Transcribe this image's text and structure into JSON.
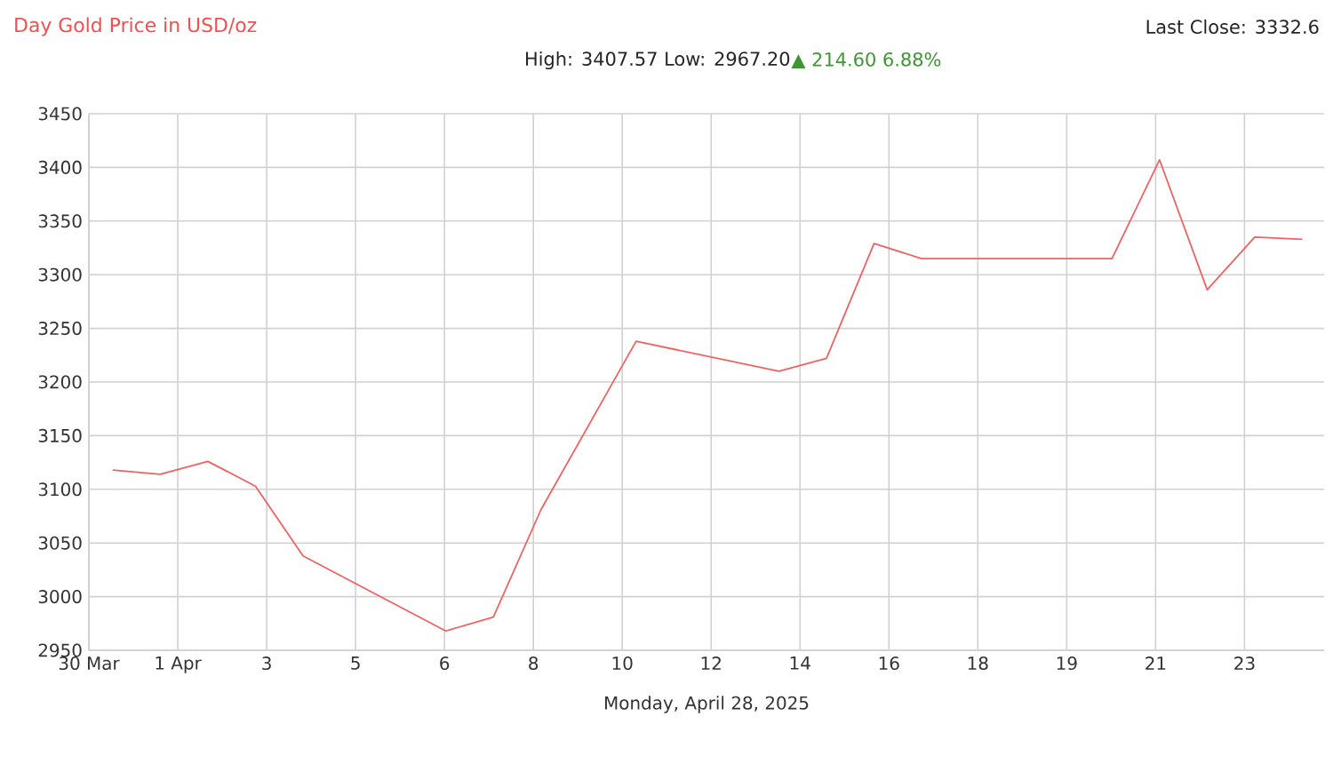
{
  "chart_data": {
    "type": "line",
    "title": "Day Gold Price in USD/oz",
    "subtitle": "High: 3407.57 Low: 2967.20",
    "xlabel": "Monday, April 28, 2025",
    "annotations": [
      "Last Close: 3332.6",
      "▲ 214.60 6.88%"
    ],
    "x": [
      "2025-03-30T22:00",
      "2025-03-31T22:00",
      "2025-04-01T22:00",
      "2025-04-02T22:00",
      "2025-04-03T22:00",
      "2025-04-06T22:00",
      "2025-04-07T22:00",
      "2025-04-08T22:00",
      "2025-04-10T22:00",
      "2025-04-13T22:00",
      "2025-04-14T22:00",
      "2025-04-15T22:00",
      "2025-04-16T22:00",
      "2025-04-20T22:00",
      "2025-04-21T22:00",
      "2025-04-22T22:00",
      "2025-04-23T22:00",
      "2025-04-24T22:00"
    ],
    "series": [
      {
        "color": "#f06262",
        "values": [
          3118,
          3114,
          3126,
          3103,
          3038,
          2968,
          2981,
          3081,
          3238,
          3210,
          3222,
          3329,
          3315,
          3315,
          3407,
          3286,
          3335,
          3333
        ]
      }
    ],
    "xlim": [
      "2025-03-30T10:00",
      "2025-04-25T09:00"
    ],
    "xticks": [
      {
        "value": "2025-03-30T10:00",
        "label": "30 Mar"
      },
      {
        "value": "2025-04-01T06:50",
        "label": "1 Apr"
      },
      {
        "value": "2025-04-03T03:40",
        "label": "3"
      },
      {
        "value": "2025-04-05T00:30",
        "label": "5"
      },
      {
        "value": "2025-04-06T21:20",
        "label": "6"
      },
      {
        "value": "2025-04-08T18:10",
        "label": "8"
      },
      {
        "value": "2025-04-10T15:00",
        "label": "10"
      },
      {
        "value": "2025-04-12T11:50",
        "label": "12"
      },
      {
        "value": "2025-04-14T08:40",
        "label": "14"
      },
      {
        "value": "2025-04-16T05:30",
        "label": "16"
      },
      {
        "value": "2025-04-18T02:20",
        "label": "18"
      },
      {
        "value": "2025-04-19T23:10",
        "label": "19"
      },
      {
        "value": "2025-04-21T20:00",
        "label": "21"
      },
      {
        "value": "2025-04-23T16:50",
        "label": "23"
      }
    ],
    "ylim": [
      2950,
      3450
    ],
    "yticks": [
      2950,
      3000,
      3050,
      3100,
      3150,
      3200,
      3250,
      3300,
      3350,
      3400,
      3450
    ],
    "grid": true,
    "marker": "none",
    "line_style": "solid"
  }
}
